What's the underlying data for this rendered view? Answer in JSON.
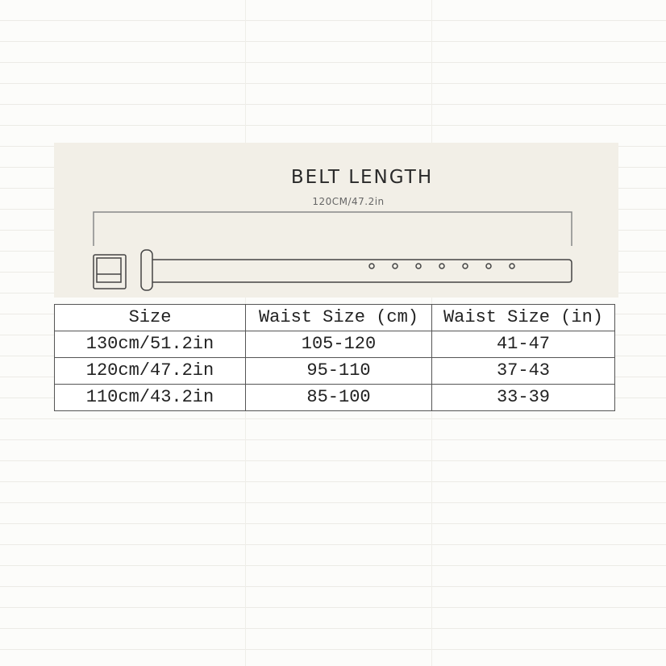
{
  "belt_diagram": {
    "title": "BELT LENGTH",
    "length_label": "120CM/47.2in",
    "hole_count": 7
  },
  "size_table": {
    "headers": [
      "Size",
      "Waist Size (cm)",
      "Waist Size (in)"
    ],
    "rows": [
      [
        "130cm/51.2in",
        "105-120",
        "41-47"
      ],
      [
        "120cm/47.2in",
        "95-110",
        "37-43"
      ],
      [
        "110cm/43.2in",
        "85-100",
        "33-39"
      ]
    ]
  }
}
